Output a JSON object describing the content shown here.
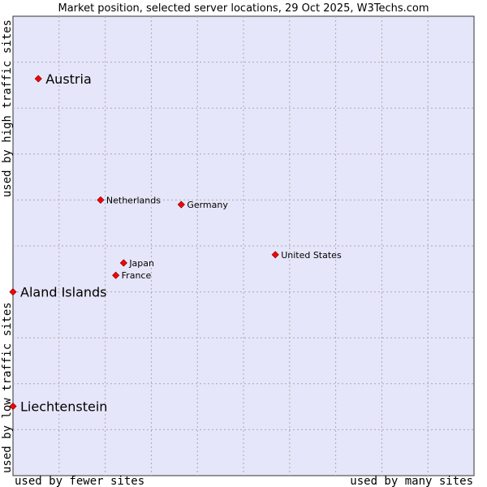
{
  "chart_data": {
    "type": "scatter",
    "title": "Market position, selected server locations, 29 Oct 2025, W3Techs.com",
    "xlabel_left": "used by fewer sites",
    "xlabel_right": "used by many sites",
    "ylabel_bottom": "used by low traffic sites",
    "ylabel_top": "used by high traffic sites",
    "xlim": [
      0,
      100
    ],
    "ylim": [
      0,
      100
    ],
    "grid": true,
    "colors": {
      "plot_background": "#e6e6fa",
      "grid": "#aaaaaa",
      "border": "#333333",
      "marker": "#ff0000",
      "marker_edge": "#880000"
    },
    "points": [
      {
        "label": "Austria",
        "x": 5.5,
        "y": 86.4,
        "emphasis": true
      },
      {
        "label": "Netherlands",
        "x": 19,
        "y": 60,
        "emphasis": false
      },
      {
        "label": "Germany",
        "x": 36.5,
        "y": 59,
        "emphasis": false
      },
      {
        "label": "United States",
        "x": 56.9,
        "y": 48.1,
        "emphasis": false
      },
      {
        "label": "Japan",
        "x": 24,
        "y": 46.3,
        "emphasis": false
      },
      {
        "label": "France",
        "x": 22.3,
        "y": 43.6,
        "emphasis": false
      },
      {
        "label": "Aland Islands",
        "x": 0,
        "y": 40,
        "emphasis": true
      },
      {
        "label": "Liechtenstein",
        "x": 0,
        "y": 15.1,
        "emphasis": true
      }
    ]
  }
}
